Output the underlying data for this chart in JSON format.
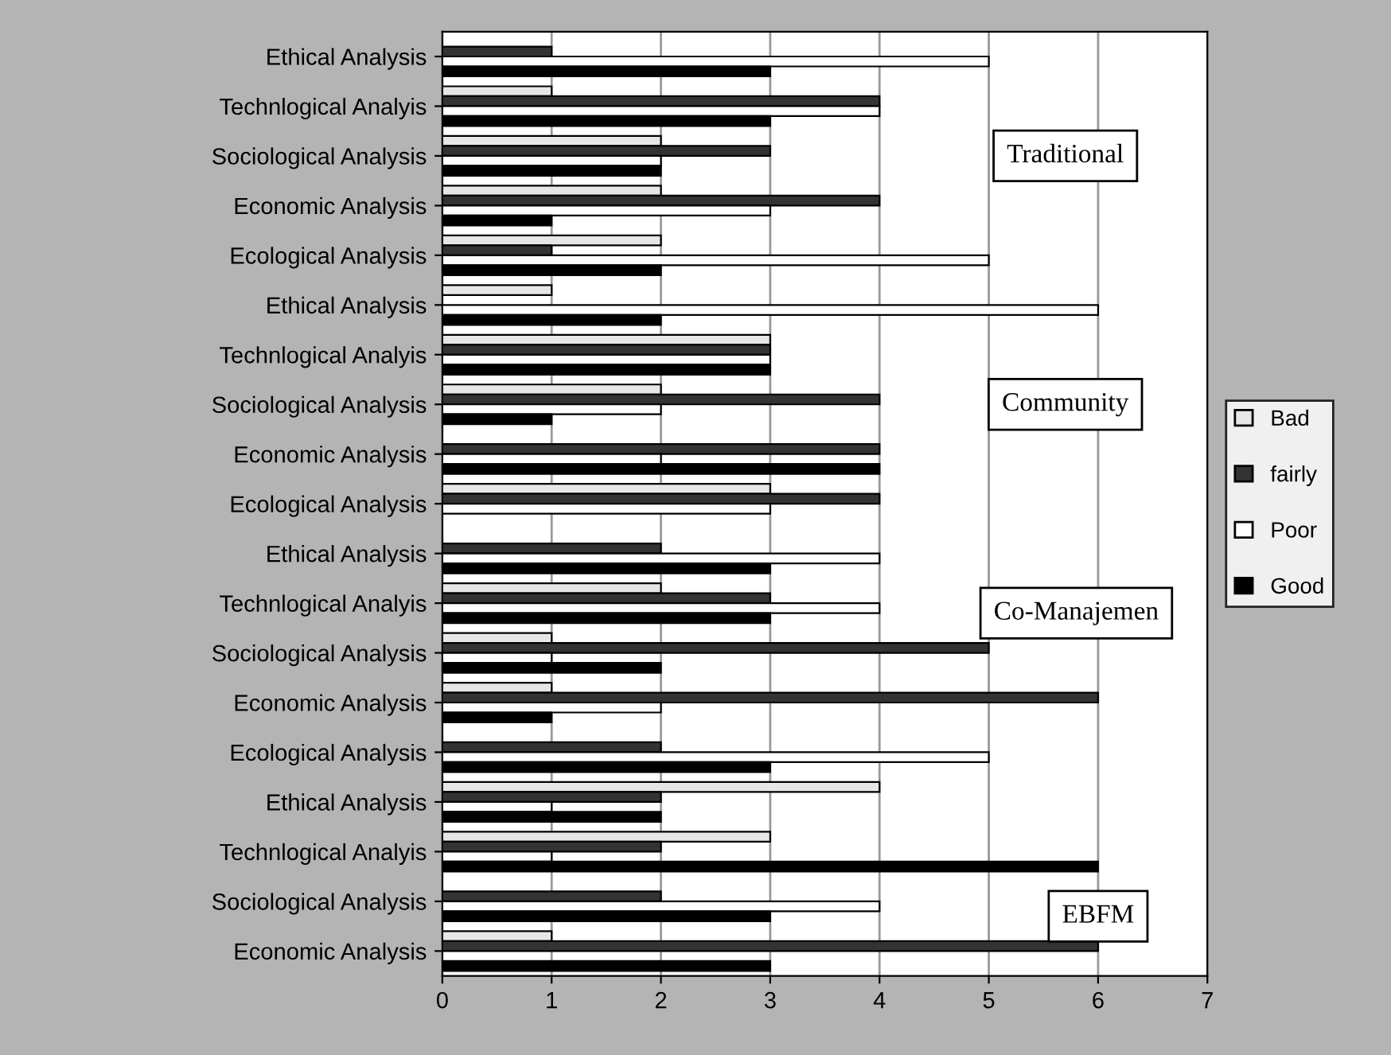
{
  "chart_data": {
    "type": "bar",
    "orientation": "horizontal",
    "categories": [
      "Ethical Analysis",
      "Technlogical Analyis",
      "Sociological Analysis",
      "Economic Analysis",
      "Ecological Analysis",
      "Ethical Analysis",
      "Technlogical Analyis",
      "Sociological Analysis",
      "Economic Analysis",
      "Ecological Analysis",
      "Ethical Analysis",
      "Technlogical Analyis",
      "Sociological Analysis",
      "Economic Analysis",
      "Ecological Analysis",
      "Ethical Analysis",
      "Technlogical Analyis",
      "Sociological Analysis",
      "Economic Analysis"
    ],
    "series": [
      {
        "name": "Bad",
        "color": "#e6e6e6",
        "values": [
          0,
          1,
          2,
          2,
          2,
          1,
          3,
          2,
          0,
          3,
          0,
          2,
          1,
          1,
          0,
          4,
          3,
          0,
          1
        ]
      },
      {
        "name": "fairly",
        "color": "#333333",
        "values": [
          1,
          4,
          3,
          4,
          1,
          0,
          3,
          4,
          4,
          4,
          2,
          3,
          5,
          6,
          2,
          2,
          2,
          2,
          6
        ]
      },
      {
        "name": "Poor",
        "color": "#ffffff",
        "values": [
          5,
          4,
          2,
          3,
          5,
          6,
          3,
          2,
          2,
          3,
          4,
          4,
          1,
          2,
          5,
          1,
          1,
          4,
          0
        ]
      },
      {
        "name": "Good",
        "color": "#000000",
        "values": [
          3,
          3,
          2,
          1,
          2,
          2,
          3,
          1,
          4,
          0,
          3,
          3,
          2,
          1,
          3,
          2,
          6,
          3,
          3
        ]
      }
    ],
    "xlim": [
      0,
      7
    ],
    "xticks": [
      0,
      1,
      2,
      3,
      4,
      5,
      6,
      7
    ],
    "grid": "x",
    "legend": "right",
    "annotations": [
      "Traditional",
      "Community",
      "Co-Manajemen",
      "EBFM"
    ]
  }
}
